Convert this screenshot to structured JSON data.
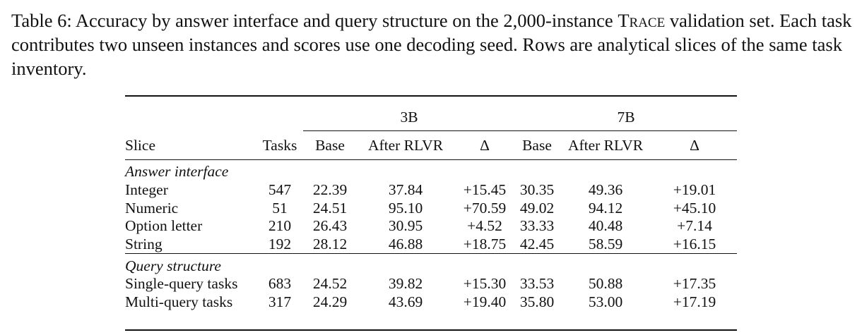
{
  "caption": {
    "prefix": "Table 6: Accuracy by answer interface and query structure on the 2,000-instance ",
    "dataset": "Trace",
    "suffix": " validation set. Each task contributes two unseen instances and scores use one decoding seed. Rows are analytical slices of the same task inventory."
  },
  "table": {
    "group_headers": {
      "g3b": "3B",
      "g7b": "7B"
    },
    "columns": [
      "Slice",
      "Tasks",
      "Base",
      "After RLVR",
      "Δ",
      "Base",
      "After RLVR",
      "Δ"
    ],
    "sections": [
      {
        "title": "Answer interface",
        "rows": [
          [
            "Integer",
            "547",
            "22.39",
            "37.84",
            "+15.45",
            "30.35",
            "49.36",
            "+19.01"
          ],
          [
            "Numeric",
            "51",
            "24.51",
            "95.10",
            "+70.59",
            "49.02",
            "94.12",
            "+45.10"
          ],
          [
            "Option letter",
            "210",
            "26.43",
            "30.95",
            "+4.52",
            "33.33",
            "40.48",
            "+7.14"
          ],
          [
            "String",
            "192",
            "28.12",
            "46.88",
            "+18.75",
            "42.45",
            "58.59",
            "+16.15"
          ]
        ]
      },
      {
        "title": "Query structure",
        "rows": [
          [
            "Single-query tasks",
            "683",
            "24.52",
            "39.82",
            "+15.30",
            "33.53",
            "50.88",
            "+17.35"
          ],
          [
            "Multi-query tasks",
            "317",
            "24.29",
            "43.69",
            "+19.40",
            "35.80",
            "53.00",
            "+17.19"
          ]
        ]
      }
    ]
  }
}
